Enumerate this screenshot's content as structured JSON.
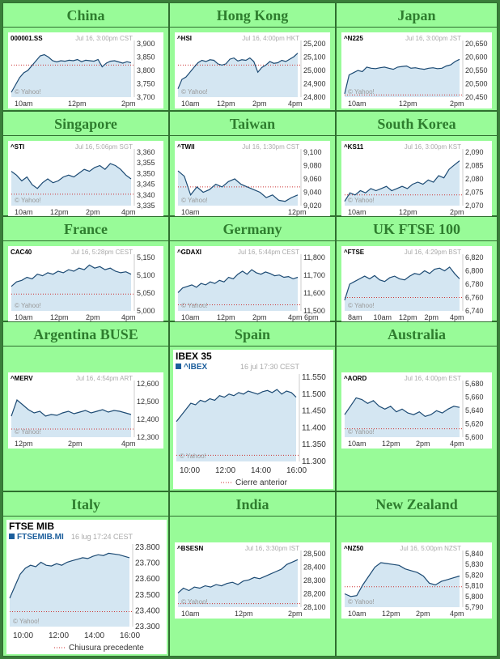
{
  "colors": {
    "page_bg": "#98fb98",
    "title_text": "#2e7d2e",
    "area_fill": "#d4e6f2",
    "line": "#1c4a73",
    "prev_close": "#cc3333"
  },
  "cells": [
    {
      "region": "China",
      "ticker": "000001.SS",
      "timestamp": "Jul 16, 3:00pm CST",
      "yticks": [
        "3,900",
        "3,850",
        "3,800",
        "3,750",
        "3,700"
      ],
      "xticks": [
        "10am",
        "12pm",
        "2pm"
      ],
      "watermark": "© Yahoo!"
    },
    {
      "region": "Hong Kong",
      "ticker": "^HSI",
      "timestamp": "Jul 16, 4:00pm HKT",
      "yticks": [
        "25,200",
        "25,100",
        "25,000",
        "24,900",
        "24,800"
      ],
      "xticks": [
        "10am",
        "12pm",
        "2pm",
        "4pm"
      ],
      "watermark": "© Yahoo!"
    },
    {
      "region": "Japan",
      "ticker": "^N225",
      "timestamp": "Jul 16, 3:00pm JST",
      "yticks": [
        "20,650",
        "20,600",
        "20,550",
        "20,500",
        "20,450"
      ],
      "xticks": [
        "10am",
        "12pm",
        "2pm"
      ],
      "watermark": "© Yahoo!"
    },
    {
      "region": "Singapore",
      "ticker": "^STI",
      "timestamp": "Jul 16, 5:06pm SGT",
      "yticks": [
        "3,360",
        "3,355",
        "3,350",
        "3,345",
        "3,340",
        "3,335"
      ],
      "xticks": [
        "10am",
        "12pm",
        "2pm",
        "4pm"
      ],
      "watermark": "© Yahoo!"
    },
    {
      "region": "Taiwan",
      "ticker": "^TWII",
      "timestamp": "Jul 16, 1:30pm CST",
      "yticks": [
        "9,100",
        "9,080",
        "9,060",
        "9,040",
        "9,020"
      ],
      "xticks": [
        "10am",
        "12pm"
      ],
      "watermark": "© Yahoo!"
    },
    {
      "region": "South Korea",
      "ticker": "^KS11",
      "timestamp": "Jul 16, 3:00pm KST",
      "yticks": [
        "2,090",
        "2,085",
        "2,080",
        "2,075",
        "2,070"
      ],
      "xticks": [
        "10am",
        "12pm",
        "2pm"
      ],
      "watermark": "© Yahoo!"
    },
    {
      "region": "France",
      "ticker": "CAC40",
      "timestamp": "Jul 16, 5:28pm CEST",
      "yticks": [
        "5,150",
        "5,100",
        "5,050",
        "5,000"
      ],
      "xticks": [
        "10am",
        "12pm",
        "2pm",
        "4pm"
      ],
      "watermark": "© Yahoo!"
    },
    {
      "region": "Germany",
      "ticker": "^GDAXI",
      "timestamp": "Jul 16, 5:44pm CEST",
      "yticks": [
        "11,800",
        "11,700",
        "11,600",
        "11,500"
      ],
      "xticks": [
        "10am",
        "12pm",
        "2pm",
        "4pm 6pm"
      ],
      "watermark": "© Yahoo!"
    },
    {
      "region": "UK FTSE 100",
      "ticker": "^FTSE",
      "timestamp": "Jul 16, 4:29pm BST",
      "yticks": [
        "6,820",
        "6,800",
        "6,780",
        "6,760",
        "6,740"
      ],
      "xticks": [
        "8am",
        "10am",
        "12pm",
        "2pm",
        "4pm"
      ],
      "watermark": "© Yahoo!"
    },
    {
      "region": "Argentina BUSE",
      "ticker": "^MERV",
      "timestamp": "Jul 16, 4:54pm ART",
      "yticks": [
        "12,600",
        "12,500",
        "12,400",
        "12,300"
      ],
      "xticks": [
        "12pm",
        "2pm",
        "4pm"
      ],
      "watermark": "© Yahoo!"
    },
    {
      "region": "Spain",
      "name": "IBEX 35",
      "ticker": "^IBEX",
      "timestamp": "16 jul 17:30 CEST",
      "yticks": [
        "11.550",
        "11.500",
        "11.450",
        "11.400",
        "11.350",
        "11.300"
      ],
      "xticks": [
        "10:00",
        "12:00",
        "14:00",
        "16:00"
      ],
      "watermark": "© Yahoo!",
      "legend": "Cierre anterior"
    },
    {
      "region": "Australia",
      "ticker": "^AORD",
      "timestamp": "Jul 16, 4:00pm EST",
      "yticks": [
        "5,680",
        "5,660",
        "5,640",
        "5,620",
        "5,600"
      ],
      "xticks": [
        "10am",
        "12pm",
        "2pm",
        "4pm"
      ],
      "watermark": "© Yahoo!"
    },
    {
      "region": "Italy",
      "name": "FTSE MIB",
      "ticker": "FTSEMIB.MI",
      "timestamp": "16 lug 17:24 CEST",
      "yticks": [
        "23.800",
        "23.700",
        "23.600",
        "23.500",
        "23.400",
        "23.300"
      ],
      "xticks": [
        "10:00",
        "12:00",
        "14:00",
        "16:00"
      ],
      "watermark": "© Yahoo!",
      "legend": "Chiusura precedente"
    },
    {
      "region": "India",
      "ticker": "^BSESN",
      "timestamp": "Jul 16, 3:30pm IST",
      "yticks": [
        "28,500",
        "28,400",
        "28,300",
        "28,200",
        "28,100"
      ],
      "xticks": [
        "10am",
        "12pm",
        "2pm"
      ],
      "watermark": "© Yahoo!"
    },
    {
      "region": "New Zealand",
      "ticker": "^NZ50",
      "timestamp": "Jul 16, 5:00pm NZST",
      "yticks": [
        "5,840",
        "5,830",
        "5,820",
        "5,810",
        "5,800",
        "5,790"
      ],
      "xticks": [
        "10am",
        "12pm",
        "2pm",
        "4pm"
      ],
      "watermark": "© Yahoo!"
    }
  ],
  "chart_data": [
    {
      "type": "line",
      "title": "000001.SS",
      "ylim": [
        3690,
        3910
      ],
      "y": [
        3710,
        3740,
        3770,
        3790,
        3800,
        3820,
        3840,
        3860,
        3865,
        3855,
        3840,
        3835,
        3840,
        3838,
        3842,
        3840,
        3845,
        3836,
        3842,
        3840,
        3838,
        3845,
        3815,
        3830,
        3838,
        3840,
        3835,
        3830,
        3836,
        3832
      ],
      "prev_close": 3822
    },
    {
      "type": "line",
      "title": "^HSI",
      "ylim": [
        24780,
        25230
      ],
      "y": [
        24850,
        24930,
        24950,
        24990,
        25030,
        25070,
        25090,
        25080,
        25095,
        25090,
        25060,
        25050,
        25060,
        25100,
        25110,
        25085,
        25095,
        25090,
        25110,
        25080,
        24990,
        25030,
        25050,
        25080,
        25065,
        25070,
        25090,
        25080,
        25100,
        25120,
        25150
      ],
      "prev_close": 25050
    },
    {
      "type": "line",
      "title": "^N225",
      "ylim": [
        20440,
        20680
      ],
      "y": [
        20455,
        20540,
        20550,
        20560,
        20555,
        20575,
        20570,
        20568,
        20572,
        20575,
        20570,
        20565,
        20575,
        20578,
        20580,
        20570,
        20572,
        20568,
        20565,
        20570,
        20572,
        20568,
        20570,
        20580,
        20585,
        20600,
        20610
      ],
      "prev_close": 20450
    },
    {
      "type": "line",
      "title": "^STI",
      "ylim": [
        3334,
        3362
      ],
      "y": [
        3352,
        3350,
        3347,
        3349,
        3345,
        3343,
        3346,
        3348,
        3346,
        3347,
        3349,
        3350,
        3349,
        3351,
        3353,
        3352,
        3354,
        3355,
        3353,
        3356,
        3355,
        3353,
        3350,
        3348
      ],
      "prev_close": 3340
    },
    {
      "type": "line",
      "title": "^TWII",
      "ylim": [
        9010,
        9110
      ],
      "y": [
        9075,
        9065,
        9030,
        9045,
        9035,
        9040,
        9050,
        9045,
        9055,
        9060,
        9050,
        9045,
        9040,
        9035,
        9025,
        9030,
        9020,
        9018,
        9025,
        9030
      ],
      "prev_close": 9045
    },
    {
      "type": "line",
      "title": "^KS11",
      "ylim": [
        2068,
        2093
      ],
      "y": [
        2070,
        2074,
        2073,
        2075,
        2074,
        2076,
        2075,
        2076,
        2077,
        2075,
        2076,
        2077,
        2076,
        2078,
        2079,
        2078,
        2080,
        2079,
        2082,
        2081,
        2085,
        2087,
        2089
      ],
      "prev_close": 2073
    },
    {
      "type": "line",
      "title": "CAC40",
      "ylim": [
        4990,
        5165
      ],
      "y": [
        5070,
        5085,
        5090,
        5100,
        5095,
        5110,
        5105,
        5115,
        5110,
        5120,
        5115,
        5125,
        5120,
        5130,
        5125,
        5140,
        5130,
        5135,
        5125,
        5130,
        5120,
        5115,
        5118,
        5110
      ],
      "prev_close": 5045
    },
    {
      "type": "line",
      "title": "^GDAXI",
      "ylim": [
        11480,
        11830
      ],
      "y": [
        11600,
        11630,
        11640,
        11650,
        11635,
        11660,
        11650,
        11670,
        11660,
        11680,
        11670,
        11700,
        11690,
        11720,
        11740,
        11720,
        11750,
        11730,
        11720,
        11735,
        11725,
        11710,
        11715,
        11700,
        11705,
        11690,
        11700
      ],
      "prev_close": 11520
    },
    {
      "type": "line",
      "title": "^FTSE",
      "ylim": [
        6730,
        6830
      ],
      "y": [
        6750,
        6780,
        6785,
        6790,
        6795,
        6790,
        6796,
        6788,
        6785,
        6792,
        6795,
        6790,
        6788,
        6795,
        6800,
        6798,
        6805,
        6800,
        6808,
        6810,
        6805,
        6812,
        6800,
        6790
      ],
      "prev_close": 6755
    },
    {
      "type": "line",
      "title": "^MERV",
      "ylim": [
        12290,
        12620
      ],
      "y": [
        12420,
        12520,
        12490,
        12460,
        12440,
        12450,
        12420,
        12430,
        12425,
        12440,
        12450,
        12435,
        12445,
        12455,
        12440,
        12450,
        12460,
        12445,
        12455,
        12450,
        12440,
        12430
      ],
      "prev_close": 12340
    },
    {
      "type": "line",
      "title": "IBEX 35",
      "ylim": [
        11290,
        11565
      ],
      "y": [
        11420,
        11440,
        11460,
        11480,
        11475,
        11490,
        11485,
        11495,
        11490,
        11505,
        11500,
        11510,
        11505,
        11515,
        11510,
        11520,
        11515,
        11510,
        11518,
        11522,
        11515,
        11525,
        11510,
        11520,
        11515,
        11500
      ],
      "prev_close": 11310
    },
    {
      "type": "line",
      "title": "^AORD",
      "ylim": [
        5595,
        5690
      ],
      "y": [
        5635,
        5650,
        5665,
        5662,
        5655,
        5660,
        5650,
        5645,
        5650,
        5640,
        5645,
        5638,
        5635,
        5640,
        5632,
        5635,
        5642,
        5638,
        5645,
        5650,
        5648
      ],
      "prev_close": 5610
    },
    {
      "type": "line",
      "title": "FTSE MIB",
      "ylim": [
        23290,
        23820
      ],
      "y": [
        23480,
        23560,
        23640,
        23680,
        23700,
        23690,
        23720,
        23700,
        23695,
        23710,
        23700,
        23720,
        23730,
        23740,
        23750,
        23745,
        23760,
        23770,
        23765,
        23780,
        23775,
        23770,
        23760,
        23750
      ],
      "prev_close": 23390
    },
    {
      "type": "line",
      "title": "^BSESN",
      "ylim": [
        28080,
        28530
      ],
      "y": [
        28200,
        28240,
        28220,
        28250,
        28240,
        28260,
        28250,
        28270,
        28260,
        28280,
        28290,
        28270,
        28300,
        28310,
        28330,
        28320,
        28340,
        28360,
        28380,
        28400,
        28440,
        28460,
        28480
      ],
      "prev_close": 28110
    },
    {
      "type": "line",
      "title": "^NZ50",
      "ylim": [
        5785,
        5845
      ],
      "y": [
        5800,
        5797,
        5798,
        5810,
        5820,
        5830,
        5835,
        5834,
        5833,
        5832,
        5828,
        5826,
        5824,
        5820,
        5812,
        5810,
        5814,
        5816,
        5818,
        5820
      ],
      "prev_close": 5808
    }
  ]
}
